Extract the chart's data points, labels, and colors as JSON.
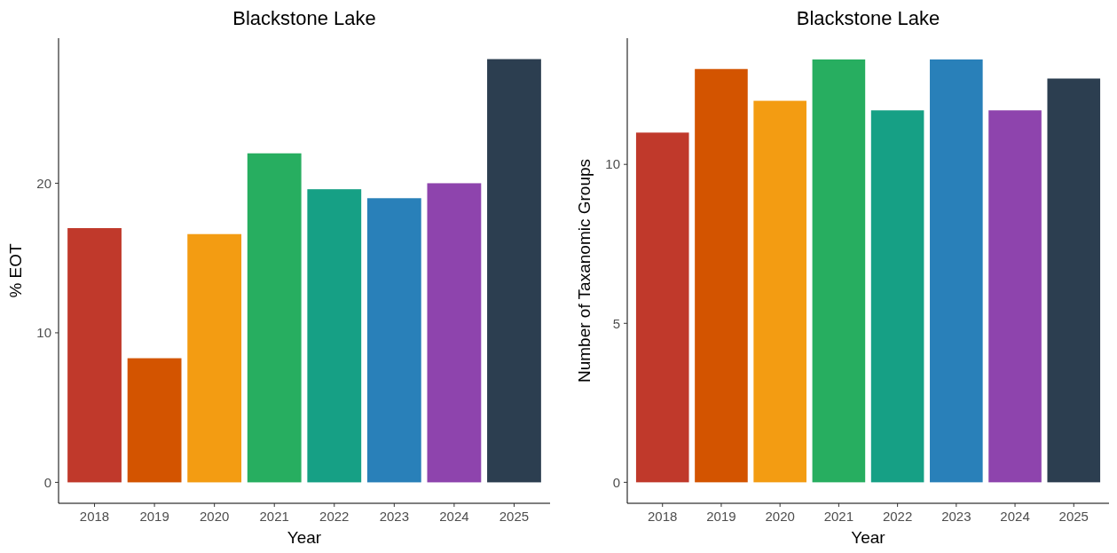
{
  "chart_data": [
    {
      "type": "bar",
      "title": "Blackstone Lake",
      "xlabel": "Year",
      "ylabel": "% EOT",
      "categories": [
        "2018",
        "2019",
        "2020",
        "2021",
        "2022",
        "2023",
        "2024",
        "2025"
      ],
      "values": [
        17.0,
        8.3,
        16.6,
        22.0,
        19.6,
        19.0,
        20.0,
        28.3
      ],
      "colors": [
        "#c0392b",
        "#d35400",
        "#f39c12",
        "#27ae60",
        "#16a085",
        "#2980b9",
        "#8e44ad",
        "#2c3e50"
      ],
      "ylim": [
        -1.4,
        29.7
      ],
      "yticks": [
        0,
        10,
        20
      ]
    },
    {
      "type": "bar",
      "title": "Blackstone Lake",
      "xlabel": "Year",
      "ylabel": "Number of Taxanomic Groups",
      "categories": [
        "2018",
        "2019",
        "2020",
        "2021",
        "2022",
        "2023",
        "2024",
        "2025"
      ],
      "values": [
        11.0,
        13.0,
        12.0,
        13.3,
        11.7,
        13.3,
        11.7,
        12.7
      ],
      "colors": [
        "#c0392b",
        "#d35400",
        "#f39c12",
        "#27ae60",
        "#16a085",
        "#2980b9",
        "#8e44ad",
        "#2c3e50"
      ],
      "ylim": [
        -0.66,
        13.97
      ],
      "yticks": [
        0,
        5,
        10
      ]
    }
  ]
}
